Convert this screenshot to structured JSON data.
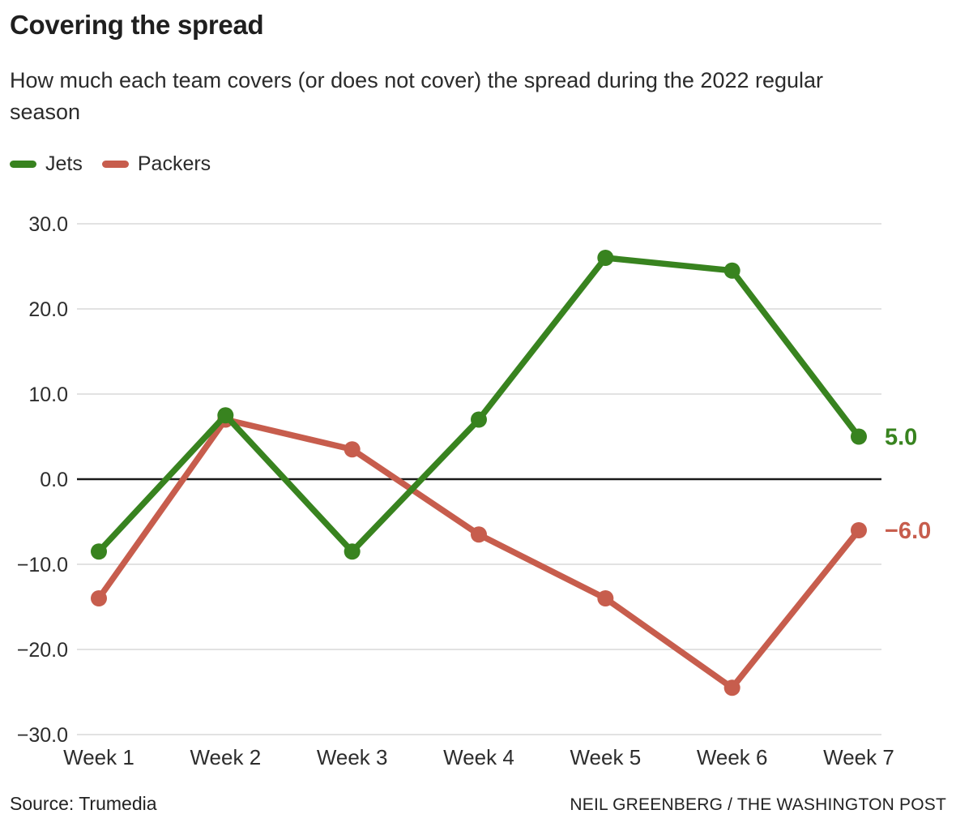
{
  "header": {
    "title": "Covering the spread",
    "subtitle": "How much each team covers (or does not cover) the spread during the 2022 regular season"
  },
  "legend": [
    {
      "label": "Jets",
      "color": "#38831f"
    },
    {
      "label": "Packers",
      "color": "#c75d4d"
    }
  ],
  "chart_data": {
    "type": "line",
    "categories": [
      "Week 1",
      "Week 2",
      "Week 3",
      "Week 4",
      "Week 5",
      "Week 6",
      "Week 7"
    ],
    "series": [
      {
        "name": "Jets",
        "color": "#38831f",
        "values": [
          -8.5,
          7.5,
          -8.5,
          7.0,
          26.0,
          24.5,
          5.0
        ],
        "end_label": "5.0"
      },
      {
        "name": "Packers",
        "color": "#c75d4d",
        "values": [
          -14.0,
          7.0,
          3.5,
          -6.5,
          -14.0,
          -24.5,
          -6.0
        ],
        "end_label": "−6.0"
      }
    ],
    "y_ticks": [
      30,
      20,
      10,
      0,
      -10,
      -20,
      -30
    ],
    "y_tick_labels": [
      "30.0",
      "20.0",
      "10.0",
      "0.0",
      "−10.0",
      "−20.0",
      "−30.0"
    ],
    "ylim": [
      -30,
      30
    ],
    "grid": true,
    "zero_line": true,
    "legend_position": "top-left",
    "title": "Covering the spread",
    "xlabel": "",
    "ylabel": ""
  },
  "footer": {
    "source": "Source: Trumedia",
    "credit": "NEIL GREENBERG / THE WASHINGTON POST"
  },
  "colors": {
    "text": "#1f1f1f",
    "axis_text": "#2d2d2d",
    "grid": "#e2e2e2",
    "zero_line": "#1a1a1a",
    "background": "#ffffff"
  }
}
